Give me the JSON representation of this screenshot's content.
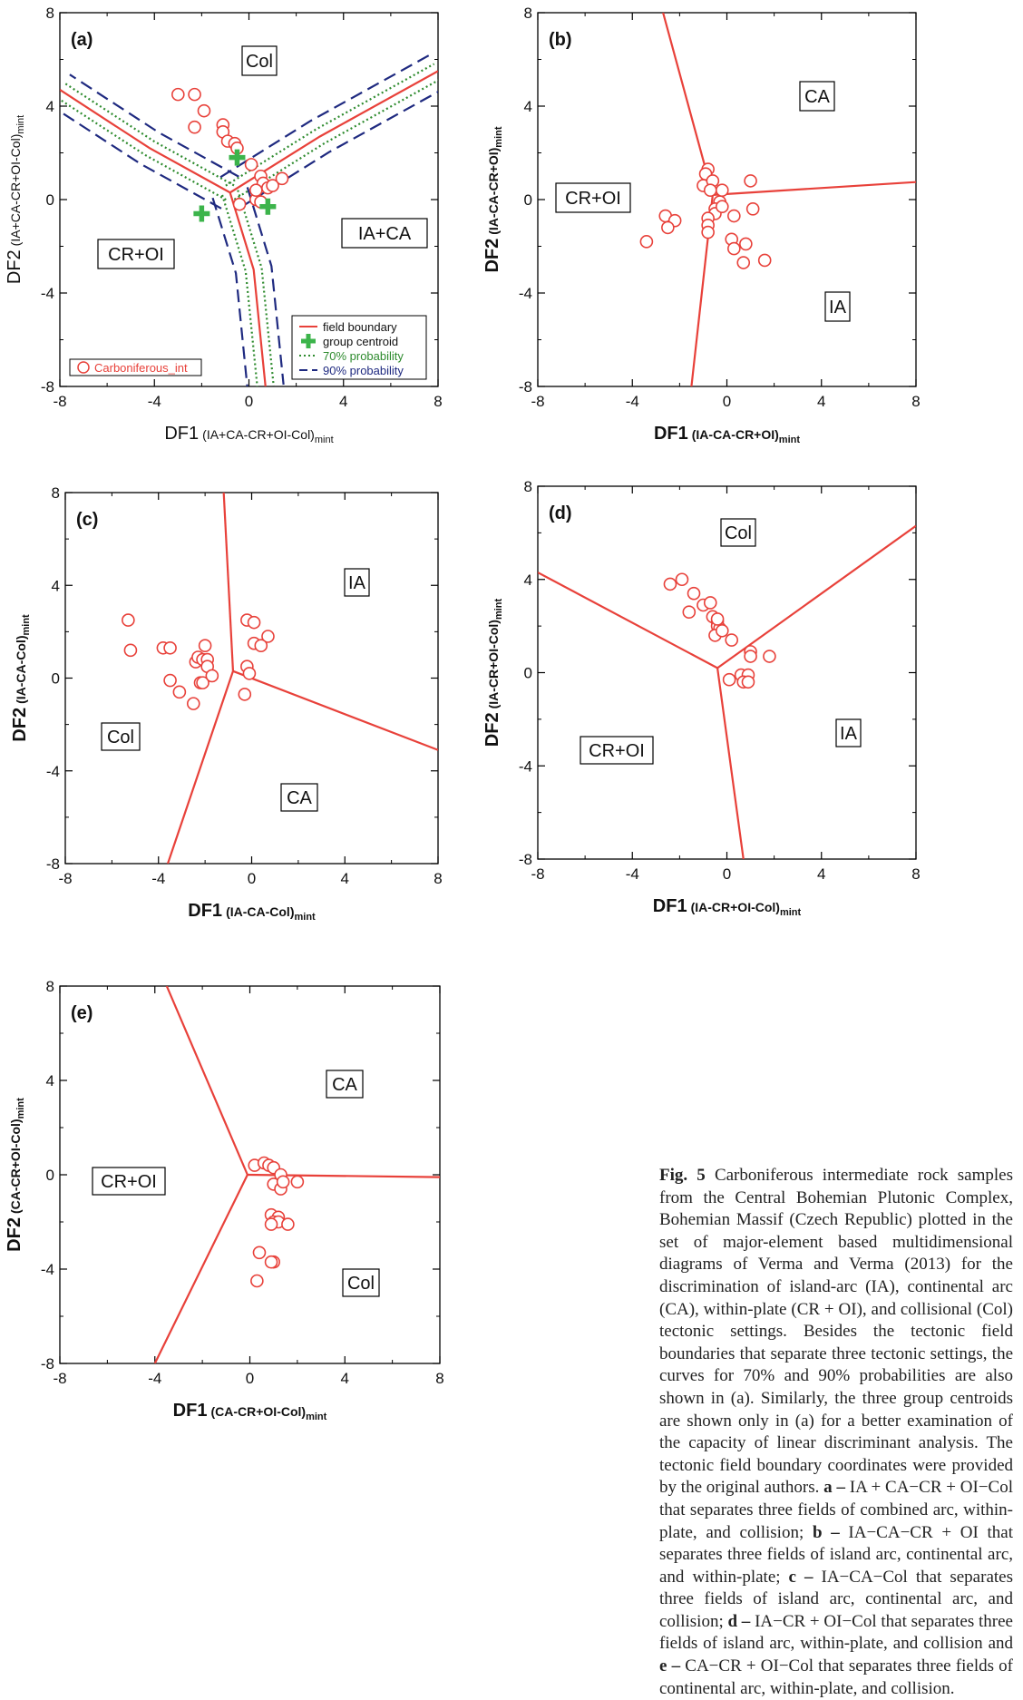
{
  "chart_data": [
    {
      "id": "a",
      "type": "scatter",
      "panel_label": "(a)",
      "xlabel": "DF1",
      "xlabel_sub": "(IA+CA-CR+OI-Col)",
      "xlabel_sub2": "mint",
      "ylabel": "DF2",
      "ylabel_sub": "(IA+CA-CR+OI-Col)",
      "ylabel_sub2": "mint",
      "xlim": [
        -8,
        8
      ],
      "ylim": [
        -8,
        8
      ],
      "xticks": [
        "-8",
        "-4",
        "0",
        "4",
        "8"
      ],
      "yticks": [
        "-8",
        "-4",
        "0",
        "4",
        "8"
      ],
      "field_labels": [
        {
          "text": "Col",
          "x": 0.3,
          "y": 5.9
        },
        {
          "text": "IA+CA",
          "x": 4.7,
          "y": -1.4
        },
        {
          "text": "CR+OI",
          "x": -4.8,
          "y": -2.2
        }
      ],
      "boundaries": [
        [
          [
            -0.8,
            0.3
          ],
          [
            -4.2,
            2.2
          ],
          [
            -8,
            4.7
          ]
        ],
        [
          [
            -0.8,
            0.3
          ],
          [
            3.0,
            2.7
          ],
          [
            8,
            5.5
          ]
        ],
        [
          [
            -0.8,
            0.3
          ],
          [
            0.2,
            -3.0
          ],
          [
            0.7,
            -8
          ]
        ]
      ],
      "series": [
        {
          "name": "Carboniferous_int",
          "color": "#e8413a",
          "points": [
            [
              -3,
              4.5
            ],
            [
              -2.3,
              4.5
            ],
            [
              -1.9,
              3.8
            ],
            [
              -2.3,
              3.1
            ],
            [
              -1.1,
              3.2
            ],
            [
              -1.1,
              2.9
            ],
            [
              -0.9,
              2.5
            ],
            [
              -0.6,
              2.4
            ],
            [
              -0.5,
              2.2
            ],
            [
              0.1,
              1.5
            ],
            [
              0.5,
              1.0
            ],
            [
              0.6,
              0.7
            ],
            [
              0.8,
              0.5
            ],
            [
              1.0,
              0.6
            ],
            [
              1.4,
              0.9
            ],
            [
              0.3,
              0.0
            ],
            [
              0.5,
              -0.1
            ],
            [
              -0.4,
              -0.2
            ],
            [
              0.3,
              0.4
            ]
          ]
        }
      ],
      "centroids": [
        [
          -0.5,
          1.8
        ],
        [
          -2.0,
          -0.6
        ],
        [
          0.8,
          -0.3
        ]
      ],
      "legend": [
        {
          "label": "field boundary",
          "kind": "line",
          "color": "#e8413a"
        },
        {
          "label": "group centroid",
          "kind": "cross",
          "color": "#3cb44b"
        },
        {
          "label": "70% probability",
          "kind": "dotted",
          "color": "#2e8b2e"
        },
        {
          "label": "90% probability",
          "kind": "dashed",
          "color": "#1f2a80"
        }
      ],
      "inline_legend": "Carboniferous_int"
    },
    {
      "id": "b",
      "type": "scatter",
      "panel_label": "(b)",
      "xlabel": "DF1",
      "xlabel_sub": "(IA-CA-CR+OI)",
      "xlabel_sub2": "mint",
      "ylabel": "DF2",
      "ylabel_sub": "(IA-CA-CR+OI)",
      "ylabel_sub2": "mint",
      "xlim": [
        -8,
        8
      ],
      "ylim": [
        -8,
        8
      ],
      "xticks": [
        "-8",
        "-4",
        "0",
        "4",
        "8"
      ],
      "yticks": [
        "-8",
        "-4",
        "0",
        "4",
        "8"
      ],
      "field_labels": [
        {
          "text": "CA",
          "x": 3.7,
          "y": 4.5
        },
        {
          "text": "CR+OI",
          "x": -5.7,
          "y": 0.1
        },
        {
          "text": "IA",
          "x": 4.7,
          "y": -4.5
        }
      ],
      "boundaries": [
        [
          [
            -0.6,
            0.2
          ],
          [
            -2.7,
            8
          ]
        ],
        [
          [
            -0.6,
            0.2
          ],
          [
            8,
            0.75
          ]
        ],
        [
          [
            -0.6,
            0.2
          ],
          [
            -1.5,
            -8
          ]
        ]
      ],
      "series": [
        {
          "name": "",
          "color": "#e8413a",
          "points": [
            [
              -0.8,
              1.3
            ],
            [
              -0.9,
              1.1
            ],
            [
              -1.0,
              0.6
            ],
            [
              -0.6,
              0.8
            ],
            [
              -0.7,
              0.4
            ],
            [
              1.0,
              0.8
            ],
            [
              -0.3,
              -0.1
            ],
            [
              -0.5,
              -0.4
            ],
            [
              -0.5,
              -0.6
            ],
            [
              -0.8,
              -0.8
            ],
            [
              -0.8,
              -1.1
            ],
            [
              -0.8,
              -1.4
            ],
            [
              -0.2,
              -0.3
            ],
            [
              0.3,
              -0.7
            ],
            [
              1.1,
              -0.4
            ],
            [
              0.2,
              -1.7
            ],
            [
              0.3,
              -2.1
            ],
            [
              0.8,
              -1.9
            ],
            [
              0.7,
              -2.7
            ],
            [
              1.6,
              -2.6
            ],
            [
              -2.6,
              -0.7
            ],
            [
              -2.2,
              -0.9
            ],
            [
              -2.5,
              -1.2
            ],
            [
              -3.4,
              -1.8
            ],
            [
              -0.2,
              0.4
            ]
          ]
        }
      ]
    },
    {
      "id": "c",
      "type": "scatter",
      "panel_label": "(c)",
      "xlabel": "DF1",
      "xlabel_sub": "(IA-CA-Col)",
      "xlabel_sub2": "mint",
      "ylabel": "DF2",
      "ylabel_sub": "(IA-CA-Col)",
      "ylabel_sub2": "mint",
      "xlim": [
        -8,
        8
      ],
      "ylim": [
        -8,
        8
      ],
      "xticks": [
        "-8",
        "-4",
        "0",
        "4",
        "8"
      ],
      "yticks": [
        "-8",
        "-4",
        "0",
        "4",
        "8"
      ],
      "field_labels": [
        {
          "text": "IA",
          "x": 4.5,
          "y": 4.1
        },
        {
          "text": "Col",
          "x": -5.7,
          "y": -2.5
        },
        {
          "text": "CA",
          "x": 2.0,
          "y": -5.1
        }
      ],
      "boundaries": [
        [
          [
            -0.8,
            0.3
          ],
          [
            -1.2,
            8
          ]
        ],
        [
          [
            -0.8,
            0.3
          ],
          [
            8,
            -3.1
          ]
        ],
        [
          [
            -0.8,
            0.3
          ],
          [
            -3.6,
            -8
          ]
        ]
      ],
      "series": [
        {
          "name": "",
          "color": "#e8413a",
          "points": [
            [
              -5.3,
              2.5
            ],
            [
              -5.2,
              1.2
            ],
            [
              -3.8,
              1.3
            ],
            [
              -3.5,
              1.3
            ],
            [
              -3.5,
              -0.1
            ],
            [
              -3.1,
              -0.6
            ],
            [
              -2.5,
              -1.1
            ],
            [
              -2.4,
              0.7
            ],
            [
              -2.3,
              0.9
            ],
            [
              -2.1,
              0.8
            ],
            [
              -2.2,
              -0.2
            ],
            [
              -2.1,
              -0.2
            ],
            [
              -2.0,
              1.4
            ],
            [
              -1.9,
              0.8
            ],
            [
              -1.9,
              0.5
            ],
            [
              -1.7,
              0.1
            ],
            [
              -0.2,
              2.5
            ],
            [
              0.1,
              2.4
            ],
            [
              0.7,
              1.8
            ],
            [
              0.1,
              1.5
            ],
            [
              0.4,
              1.4
            ],
            [
              -0.2,
              0.5
            ],
            [
              -0.1,
              0.2
            ],
            [
              -0.3,
              -0.7
            ]
          ]
        }
      ]
    },
    {
      "id": "d",
      "type": "scatter",
      "panel_label": "(d)",
      "xlabel": "DF1",
      "xlabel_sub": "(IA-CR+OI-Col)",
      "xlabel_sub2": "mint",
      "ylabel": "DF2",
      "ylabel_sub": "(IA-CR+OI-Col)",
      "ylabel_sub2": "mint",
      "xlim": [
        -8,
        8
      ],
      "ylim": [
        -8,
        8
      ],
      "xticks": [
        "-8",
        "-4",
        "0",
        "4",
        "8"
      ],
      "yticks": [
        "-8",
        "-4",
        "0",
        "4",
        "8"
      ],
      "field_labels": [
        {
          "text": "Col",
          "x": 0.5,
          "y": 6.0
        },
        {
          "text": "CR+OI",
          "x": -4.5,
          "y": -3.3
        },
        {
          "text": "IA",
          "x": 5.2,
          "y": -2.7
        }
      ],
      "boundaries": [
        [
          [
            -0.4,
            0.2
          ],
          [
            -8,
            4.3
          ]
        ],
        [
          [
            -0.4,
            0.2
          ],
          [
            8,
            6.3
          ]
        ],
        [
          [
            -0.4,
            0.2
          ],
          [
            0.7,
            -8
          ]
        ]
      ],
      "series": [
        {
          "name": "",
          "color": "#e8413a",
          "points": [
            [
              -2.4,
              3.8
            ],
            [
              -1.9,
              4.0
            ],
            [
              -1.4,
              3.4
            ],
            [
              -1.0,
              2.9
            ],
            [
              -0.7,
              3.0
            ],
            [
              -1.6,
              2.6
            ],
            [
              -0.6,
              2.4
            ],
            [
              -0.4,
              2.2
            ],
            [
              -0.4,
              2.0
            ],
            [
              -0.3,
              1.9
            ],
            [
              -0.5,
              1.6
            ],
            [
              0.2,
              1.4
            ],
            [
              1.0,
              0.9
            ],
            [
              1.0,
              0.7
            ],
            [
              1.8,
              0.7
            ],
            [
              0.1,
              -0.3
            ],
            [
              0.6,
              -0.1
            ],
            [
              0.9,
              -0.1
            ],
            [
              0.7,
              -0.4
            ],
            [
              0.9,
              -0.4
            ],
            [
              -0.4,
              2.3
            ],
            [
              -0.2,
              1.8
            ]
          ]
        }
      ]
    },
    {
      "id": "e",
      "type": "scatter",
      "panel_label": "(e)",
      "xlabel": "DF1",
      "xlabel_sub": "(CA-CR+OI-Col)",
      "xlabel_sub2": "mint",
      "ylabel": "DF2",
      "ylabel_sub": "(CA-CR+OI-Col)",
      "ylabel_sub2": "mint",
      "xlim": [
        -8,
        8
      ],
      "ylim": [
        -8,
        8
      ],
      "xticks": [
        "-8",
        "-4",
        "0",
        "4",
        "8"
      ],
      "yticks": [
        "-8",
        "-4",
        "0",
        "4",
        "8"
      ],
      "field_labels": [
        {
          "text": "CA",
          "x": 3.8,
          "y": 3.9
        },
        {
          "text": "CR+OI",
          "x": -5.2,
          "y": -0.2
        },
        {
          "text": "Col",
          "x": 4.5,
          "y": -4.5
        }
      ],
      "boundaries": [
        [
          [
            -0.1,
            0
          ],
          [
            -3.5,
            8
          ]
        ],
        [
          [
            -0.1,
            0
          ],
          [
            8,
            -0.1
          ]
        ],
        [
          [
            -0.1,
            0
          ],
          [
            -4.0,
            -8
          ]
        ]
      ],
      "series": [
        {
          "name": "",
          "color": "#e8413a",
          "points": [
            [
              0.2,
              0.4
            ],
            [
              0.6,
              0.5
            ],
            [
              0.8,
              0.4
            ],
            [
              1.0,
              0.3
            ],
            [
              1.3,
              0.0
            ],
            [
              2.0,
              -0.3
            ],
            [
              1.0,
              -0.4
            ],
            [
              1.3,
              -0.6
            ],
            [
              1.4,
              -0.3
            ],
            [
              0.9,
              -1.7
            ],
            [
              1.2,
              -1.8
            ],
            [
              1.0,
              -2.0
            ],
            [
              1.2,
              -2.0
            ],
            [
              0.9,
              -2.1
            ],
            [
              1.6,
              -2.1
            ],
            [
              0.4,
              -3.3
            ],
            [
              1.0,
              -3.7
            ],
            [
              0.9,
              -3.7
            ],
            [
              0.3,
              -4.5
            ]
          ]
        }
      ]
    }
  ],
  "caption": {
    "fig": "Fig. 5",
    "text": " Carboniferous intermediate rock samples from the Central Bohemian Plutonic Complex, Bohemian Massif (Czech Republic) plotted in the set of major-element based multidimensional diagrams of Verma and Verma (2013) for the discrimination of island-arc (IA), continental arc (CA), within-plate (CR + OI), and collisional (Col) tectonic settings. Besides the tectonic field boundaries that separate three tectonic settings, the curves for 70% and 90% probabilities are also shown in (a). Similarly, the three group centroids are shown only in (a) for a better examination of the capacity of linear discriminant analysis. The tectonic field boundary coordinates were provided by the original authors.",
    "items": [
      {
        "key": "a –",
        "text": " IA + CA−CR + OI−Col that separates three fields of combined arc, within-plate, and collision; "
      },
      {
        "key": "b –",
        "text": " IA−CA−CR + OI that separates three fields of island arc, continental arc, and within-plate; "
      },
      {
        "key": "c –",
        "text": " IA−CA−Col that separates three fields of island arc, continental arc, and collision; "
      },
      {
        "key": "d –",
        "text": " IA−CR + OI−Col that separates three fields of island arc, within-plate, and collision and "
      },
      {
        "key": "e –",
        "text": " CA−CR + OI−Col that separates three fields of continental arc, within-plate, and collision."
      }
    ]
  }
}
